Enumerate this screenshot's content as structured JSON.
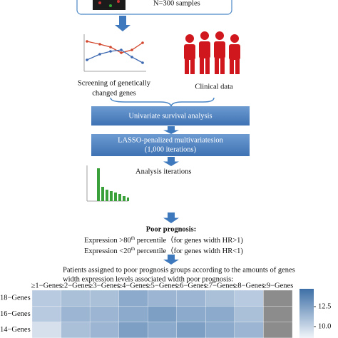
{
  "top_box": {
    "label": "N=300 samples"
  },
  "screening": {
    "lines": [
      "Screening of genetically",
      "changed genes"
    ]
  },
  "clinical": {
    "label": "Clinical data"
  },
  "steps": [
    {
      "lines": [
        "Univariate survival analysis"
      ]
    },
    {
      "lines": [
        "LASSO-penalized multivariatesion",
        "(1,000 iterations)"
      ]
    }
  ],
  "iterations": {
    "label": "Analysis iterations"
  },
  "poor_prognosis": {
    "title": "Poor prognosis:",
    "rules": [
      {
        "before": "Expression >80",
        "sup": "th",
        "after": " percentile（for genes width HR>1)"
      },
      {
        "before": "Expression <20",
        "sup": "th",
        "after": " percentile（for genes width HR<1)"
      }
    ]
  },
  "patients": {
    "lines": [
      "Patients assigned to poor prognosis groups according to the amounts of genes",
      "width expression levels associated width poor prognosis:"
    ]
  },
  "heatmap": {
    "columns": [
      "≥1−Genes",
      "≥2−Genes",
      "≥3−Genes",
      "≥4−Genes",
      "≥5−Genes",
      "≥6−Genes",
      "≥7−Genes",
      "≥8−Genes",
      "≥9−Genes"
    ],
    "rows": [
      {
        "label": "18−Genes",
        "values": [
          10.5,
          11.0,
          11.0,
          12.0,
          11.5,
          11.5,
          11.0,
          10.5,
          null
        ]
      },
      {
        "label": "16−Genes",
        "values": [
          10.5,
          11.5,
          11.5,
          12.0,
          12.5,
          12.0,
          12.0,
          11.0,
          null
        ]
      },
      {
        "label": "14−Genes",
        "values": [
          9.5,
          11.0,
          11.5,
          12.5,
          12.0,
          12.5,
          12.0,
          11.5,
          null
        ]
      }
    ],
    "colorbar_ticks": [
      {
        "value": 12.5,
        "label": "12.5"
      },
      {
        "value": 10,
        "label": "10.0"
      }
    ]
  }
}
